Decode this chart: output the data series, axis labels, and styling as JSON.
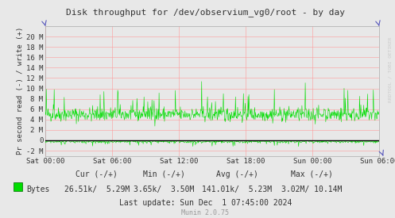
{
  "title": "Disk throughput for /dev/observium_vg0/root - by day",
  "ylabel": "Pr second read (-) / write (+)",
  "watermark": "RRDTOOL / TOBI OETIKER",
  "munin_version": "Munin 2.0.75",
  "background_color": "#e8e8e8",
  "plot_bg_color": "#e8e8e8",
  "grid_color": "#ff9999",
  "line_color": "#00dd00",
  "zero_line_color": "#000000",
  "border_color": "#aaaaaa",
  "ylim": [
    -3000000,
    22000000
  ],
  "yticks": [
    -2000000,
    0,
    2000000,
    4000000,
    6000000,
    8000000,
    10000000,
    12000000,
    14000000,
    16000000,
    18000000,
    20000000
  ],
  "ytick_labels": [
    "-2 M",
    "0",
    "2 M",
    "4 M",
    "6 M",
    "8 M",
    "10 M",
    "12 M",
    "14 M",
    "16 M",
    "18 M",
    "20 M"
  ],
  "xtick_labels": [
    "Sat 00:00",
    "Sat 06:00",
    "Sat 12:00",
    "Sat 18:00",
    "Sun 00:00",
    "Sun 06:00"
  ],
  "legend_label": "Bytes",
  "stats_cur": "26.51k/  5.29M",
  "stats_min": "3.65k/  3.50M",
  "stats_avg": "141.01k/  5.23M",
  "stats_max": "3.02M/ 10.14M",
  "last_update": "Last update: Sun Dec  1 07:45:00 2024",
  "n_points": 800,
  "seed": 42,
  "base_write": 5000000,
  "base_read": -250000,
  "write_noise": 700000,
  "read_noise": 150000,
  "spike_prob_write": 0.04,
  "spike_magnitude_write": 5000000,
  "spike_prob_read": 0.025,
  "spike_magnitude_read": 1000000
}
